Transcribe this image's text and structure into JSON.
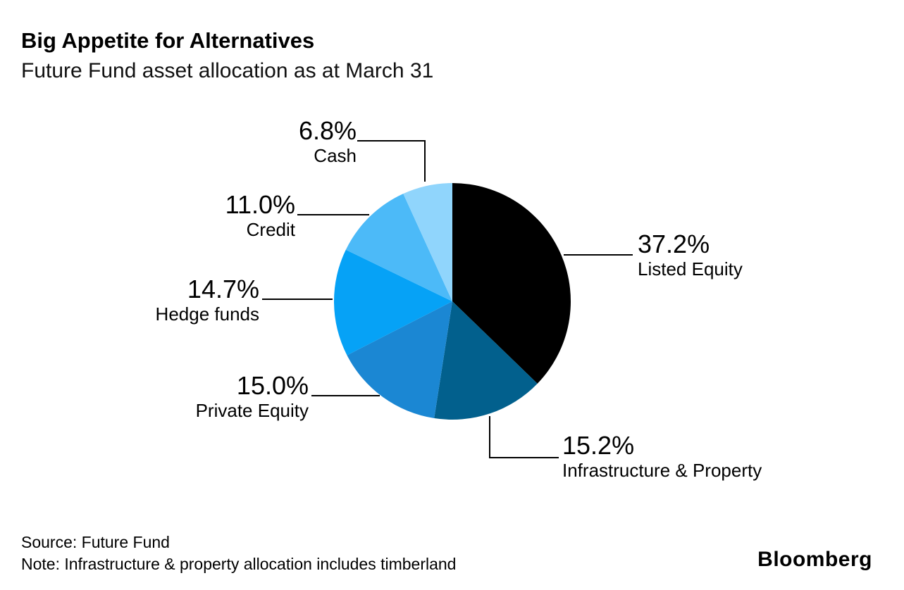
{
  "header": {
    "title": "Big Appetite for Alternatives",
    "subtitle": "Future Fund asset allocation as at March 31"
  },
  "chart_data": {
    "type": "pie",
    "title": "Big Appetite for Alternatives",
    "subtitle": "Future Fund asset allocation as at March 31",
    "unit": "%",
    "start_angle_deg": 0,
    "direction": "clockwise-from-top",
    "legend_position": "callout-labels",
    "slices": [
      {
        "label": "Listed Equity",
        "value": 37.2,
        "pct": "37.2%",
        "color": "#000000"
      },
      {
        "label": "Infrastructure & Property",
        "value": 15.2,
        "pct": "15.2%",
        "color": "#02608d"
      },
      {
        "label": "Private Equity",
        "value": 15.0,
        "pct": "15.0%",
        "color": "#1b87d3"
      },
      {
        "label": "Hedge funds",
        "value": 14.7,
        "pct": "14.7%",
        "color": "#06a2f6"
      },
      {
        "label": "Credit",
        "value": 11.0,
        "pct": "11.0%",
        "color": "#4cbaf8"
      },
      {
        "label": "Cash",
        "value": 6.8,
        "pct": "6.8%",
        "color": "#90d5fc"
      }
    ],
    "leader_line_color": "#000000"
  },
  "footer": {
    "source": "Source: Future Fund",
    "note": "Note: Infrastructure & property allocation includes timberland",
    "brand": "Bloomberg"
  }
}
